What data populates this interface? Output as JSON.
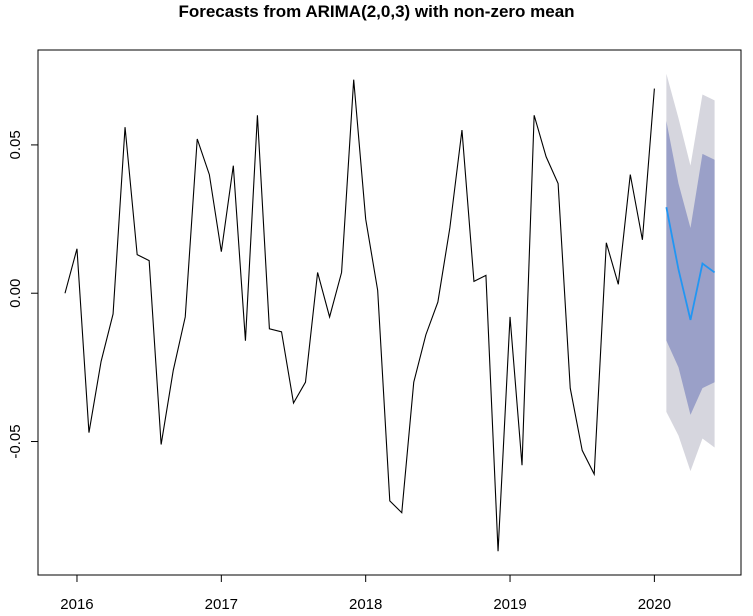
{
  "chart_data": {
    "type": "line",
    "title": "Forecasts from ARIMA(2,0,3) with non-zero mean",
    "xlabel": "",
    "ylabel": "",
    "xlim": [
      2015.73,
      2020.6
    ],
    "ylim": [
      -0.095,
      0.082
    ],
    "x_ticks": [
      2016,
      2017,
      2018,
      2019,
      2020
    ],
    "x_tick_labels": [
      "2016",
      "2017",
      "2018",
      "2019",
      "2020"
    ],
    "y_ticks": [
      -0.05,
      0.0,
      0.05
    ],
    "y_tick_labels": [
      "-0.05",
      "0.00",
      "0.05"
    ],
    "grid": false,
    "colors": {
      "history": "#000000",
      "forecast": "#2196f3",
      "band80": "#9aa0c8",
      "band95": "#d6d6de"
    },
    "history": {
      "x": [
        2015.917,
        2016.0,
        2016.083,
        2016.167,
        2016.25,
        2016.333,
        2016.417,
        2016.5,
        2016.583,
        2016.667,
        2016.75,
        2016.833,
        2016.917,
        2017.0,
        2017.083,
        2017.167,
        2017.25,
        2017.333,
        2017.417,
        2017.5,
        2017.583,
        2017.667,
        2017.75,
        2017.833,
        2017.917,
        2018.0,
        2018.083,
        2018.167,
        2018.25,
        2018.333,
        2018.417,
        2018.5,
        2018.583,
        2018.667,
        2018.75,
        2018.833,
        2018.917,
        2019.0,
        2019.083,
        2019.167,
        2019.25,
        2019.333,
        2019.417,
        2019.5,
        2019.583,
        2019.667,
        2019.75,
        2019.833,
        2019.917,
        2020.0
      ],
      "y": [
        0.0,
        0.015,
        -0.047,
        -0.023,
        -0.007,
        0.056,
        0.013,
        0.011,
        -0.051,
        -0.026,
        -0.008,
        0.052,
        0.04,
        0.014,
        0.043,
        -0.016,
        0.06,
        -0.012,
        -0.013,
        -0.037,
        -0.03,
        0.007,
        -0.008,
        0.007,
        0.072,
        0.025,
        0.001,
        -0.07,
        -0.074,
        -0.03,
        -0.014,
        -0.003,
        0.022,
        0.055,
        0.004,
        0.006,
        -0.087,
        -0.008,
        -0.058,
        0.06,
        0.046,
        0.037,
        -0.032,
        -0.053,
        -0.061,
        0.017,
        0.003,
        0.04,
        0.018,
        0.069
      ]
    },
    "forecast": {
      "x": [
        2020.083,
        2020.167,
        2020.25,
        2020.333,
        2020.417
      ],
      "mean": [
        0.029,
        0.008,
        -0.009,
        0.01,
        0.007
      ],
      "lo80": [
        -0.016,
        -0.025,
        -0.041,
        -0.032,
        -0.03
      ],
      "hi80": [
        0.058,
        0.037,
        0.022,
        0.047,
        0.045
      ],
      "lo95": [
        -0.04,
        -0.048,
        -0.06,
        -0.049,
        -0.052
      ],
      "hi95": [
        0.074,
        0.059,
        0.043,
        0.067,
        0.065
      ]
    }
  }
}
